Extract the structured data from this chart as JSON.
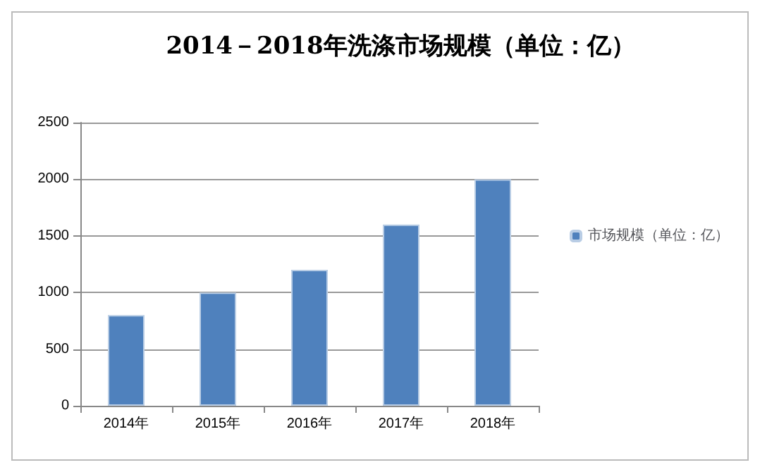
{
  "chart_data": {
    "type": "bar",
    "title": "2014－2018年洗涤市场规模（单位：亿）",
    "categories": [
      "2014年",
      "2015年",
      "2016年",
      "2017年",
      "2018年"
    ],
    "series": [
      {
        "name": "市场规模（单位：亿）",
        "color": "#4f81bd",
        "values": [
          800,
          1000,
          1200,
          1600,
          2000
        ]
      }
    ],
    "ylim": [
      0,
      2500
    ],
    "yticks": [
      0,
      500,
      1000,
      1500,
      2000,
      2500
    ],
    "grid": "y",
    "legend": "right"
  }
}
